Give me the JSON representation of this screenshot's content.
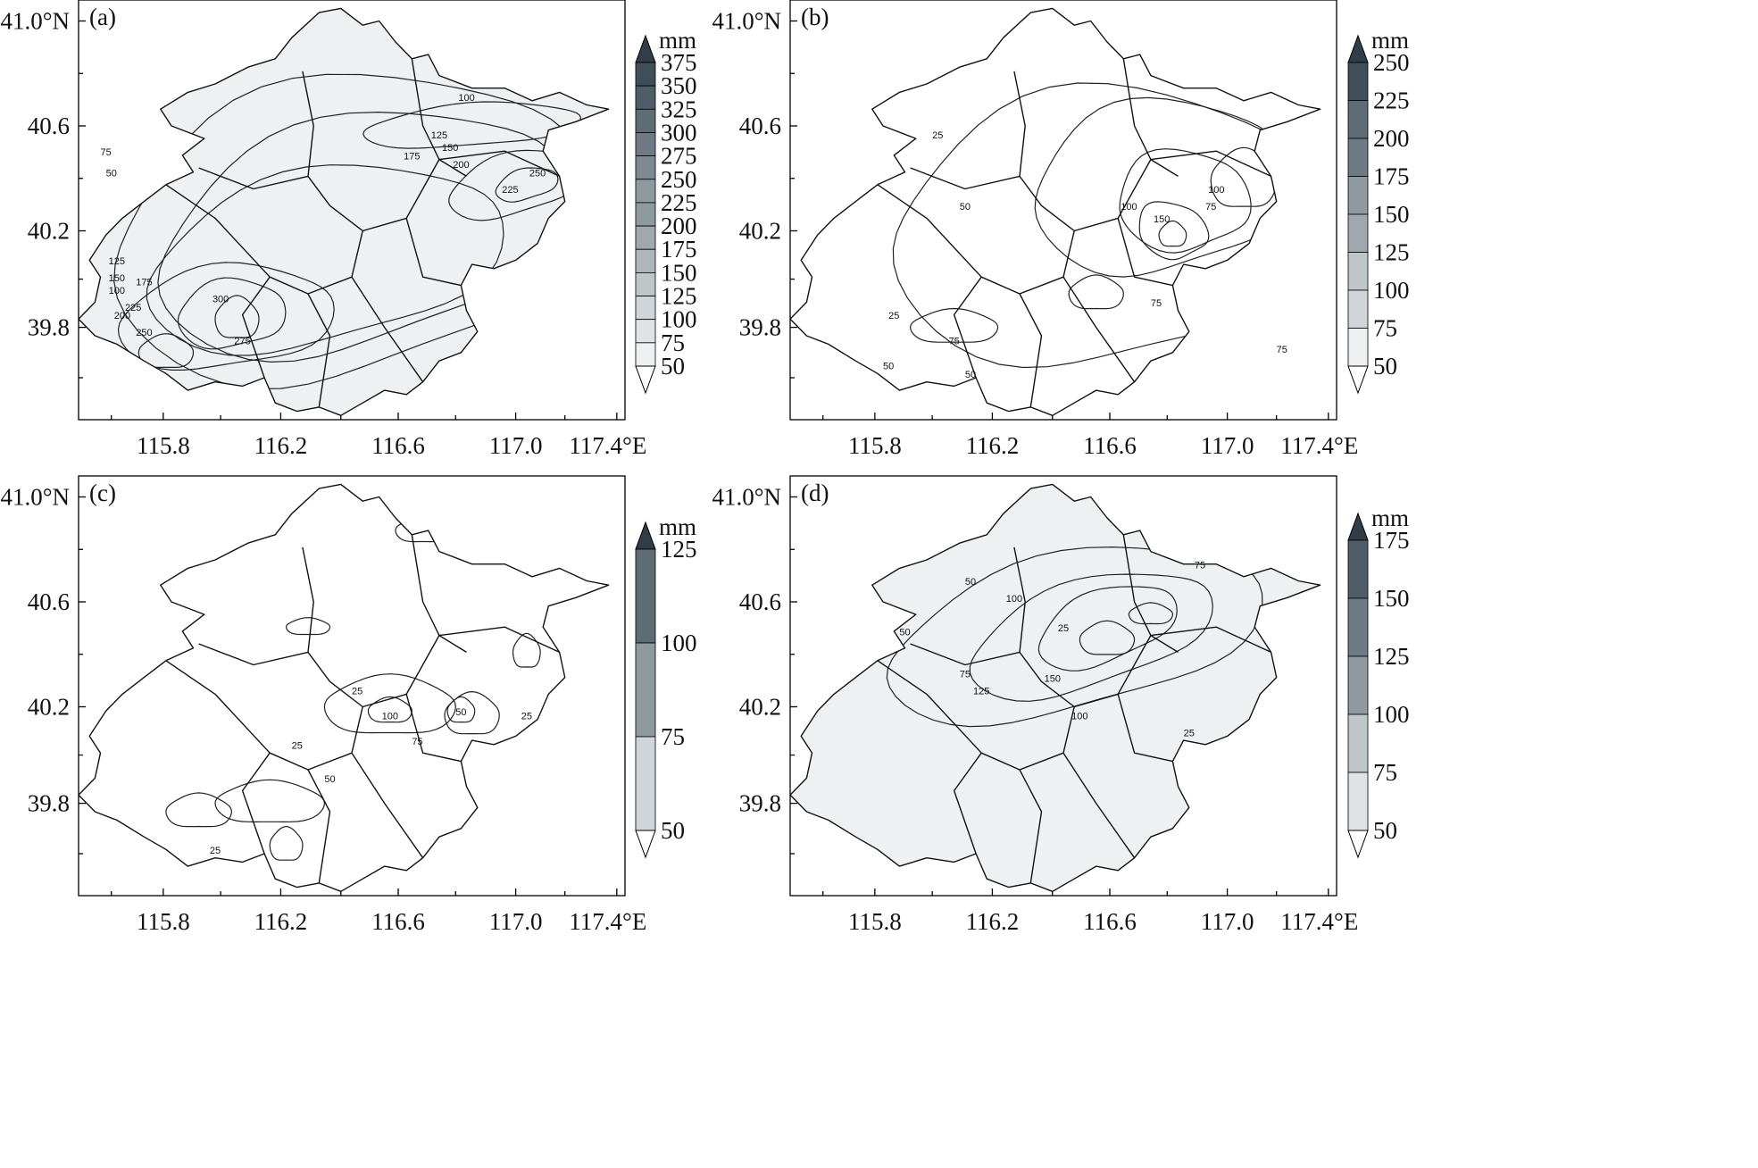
{
  "unit": "mm",
  "lat_labels": [
    "41.0°N",
    "40.6",
    "40.2",
    "39.8"
  ],
  "lon_labels": [
    "115.8",
    "116.2",
    "116.6",
    "117.0",
    "117.4°E"
  ],
  "colors": {
    "ramp": [
      "#ffffff",
      "#eef0f1",
      "#dfe3e5",
      "#cfd5d8",
      "#bec6ca",
      "#aeb7bc",
      "#9ea8ae",
      "#8e99a0",
      "#7e8a92",
      "#6e7b84",
      "#5e6c76",
      "#4e5d68",
      "#3f4e59",
      "#2f3e49"
    ]
  },
  "panels": [
    {
      "label": "(a)",
      "colorbar": [
        "375",
        "350",
        "325",
        "300",
        "275",
        "250",
        "225",
        "200",
        "175",
        "150",
        "125",
        "100",
        "75",
        "50"
      ],
      "contour_labels": [
        "50",
        "75",
        "100",
        "125",
        "150",
        "175",
        "200",
        "225",
        "250",
        "275",
        "300",
        "100",
        "125",
        "150",
        "175",
        "200",
        "225",
        "250"
      ]
    },
    {
      "label": "(b)",
      "colorbar": [
        "250",
        "225",
        "200",
        "175",
        "150",
        "125",
        "100",
        "75",
        "50"
      ],
      "contour_labels": [
        "25",
        "50",
        "75",
        "100",
        "150",
        "50",
        "75",
        "100",
        "75",
        "25",
        "50",
        "75"
      ]
    },
    {
      "label": "(c)",
      "colorbar": [
        "125",
        "100",
        "75",
        "50"
      ],
      "contour_labels": [
        "25",
        "50",
        "75",
        "100",
        "25",
        "50",
        "25",
        "25"
      ]
    },
    {
      "label": "(d)",
      "colorbar": [
        "175",
        "150",
        "125",
        "100",
        "75",
        "50"
      ],
      "contour_labels": [
        "50",
        "75",
        "100",
        "125",
        "150",
        "25",
        "50",
        "75",
        "100",
        "25"
      ]
    }
  ]
}
